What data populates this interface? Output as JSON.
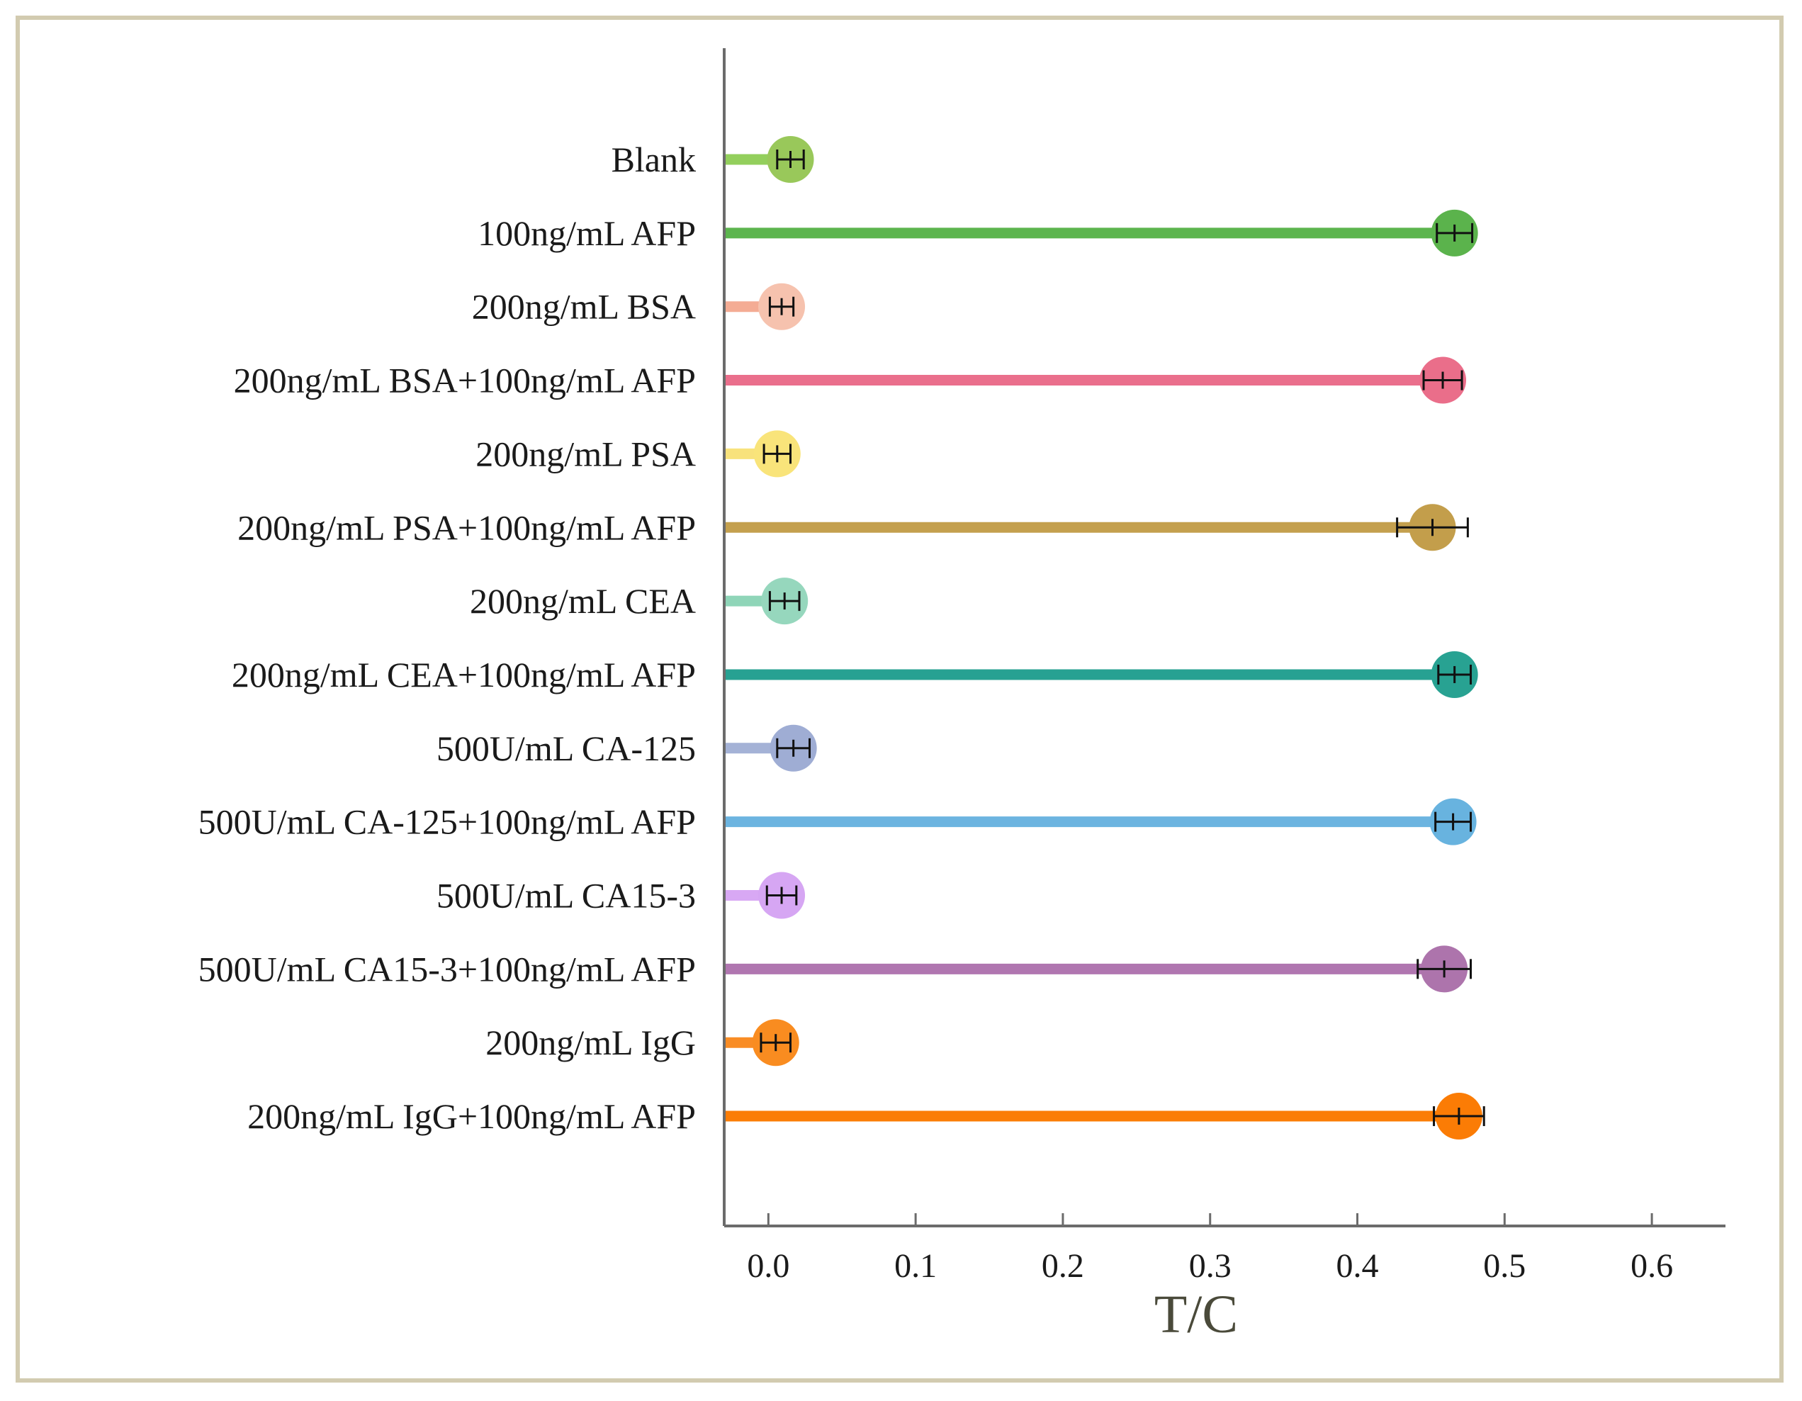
{
  "chart_data": {
    "type": "lollipop",
    "title": "",
    "xlabel": "T/C",
    "ylabel": "",
    "xlim": [
      -0.03,
      0.65
    ],
    "xticks": [
      0.0,
      0.1,
      0.2,
      0.3,
      0.4,
      0.5,
      0.6
    ],
    "xtick_labels": [
      "0.0",
      "0.1",
      "0.2",
      "0.3",
      "0.4",
      "0.5",
      "0.6"
    ],
    "grid": false,
    "categories": [
      "Blank",
      "100ng/mL AFP",
      "200ng/mL BSA",
      "200ng/mL BSA+100ng/mL AFP",
      "200ng/mL PSA",
      "200ng/mL PSA+100ng/mL AFP",
      "200ng/mL CEA",
      "200ng/mL CEA+100ng/mL AFP",
      "500U/mL CA-125",
      "500U/mL CA-125+100ng/mL AFP",
      "500U/mL CA15-3",
      "500U/mL CA15-3+100ng/mL AFP",
      "200ng/mL IgG",
      "200ng/mL IgG+100ng/mL AFP"
    ],
    "values": [
      0.015,
      0.466,
      0.009,
      0.458,
      0.006,
      0.451,
      0.011,
      0.466,
      0.017,
      0.465,
      0.009,
      0.459,
      0.005,
      0.469
    ],
    "errors": [
      0.009,
      0.012,
      0.008,
      0.013,
      0.009,
      0.024,
      0.01,
      0.011,
      0.011,
      0.012,
      0.01,
      0.018,
      0.01,
      0.017
    ],
    "colors": [
      "#93cf5c",
      "#5cb54e",
      "#f4ac94",
      "#ea6f8c",
      "#f8e27c",
      "#c4a04e",
      "#8fd5b8",
      "#27a192",
      "#a4b2d6",
      "#6cb4e0",
      "#d8a8f4",
      "#b076b0",
      "#f98c24",
      "#fb7d06"
    ],
    "dot_colors": [
      "#99c85a",
      "#5bb34c",
      "#f6c2ae",
      "#ea6e8a",
      "#f9e47a",
      "#c39e4b",
      "#96d7bd",
      "#28a292",
      "#9fadd4",
      "#68b3df",
      "#d6a6f3",
      "#ad74ac",
      "#f98c20",
      "#fb7c05"
    ]
  }
}
